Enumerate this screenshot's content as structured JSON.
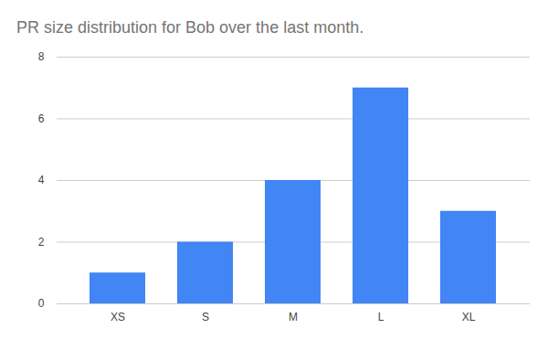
{
  "chart_data": {
    "type": "bar",
    "title": "PR size distribution for Bob over the last month.",
    "categories": [
      "XS",
      "S",
      "M",
      "L",
      "XL"
    ],
    "values": [
      1,
      2,
      4,
      7,
      3
    ],
    "color": "#4285f4",
    "ylim": [
      0,
      8
    ],
    "yticks": [
      0,
      2,
      4,
      6,
      8
    ],
    "grid": true
  }
}
